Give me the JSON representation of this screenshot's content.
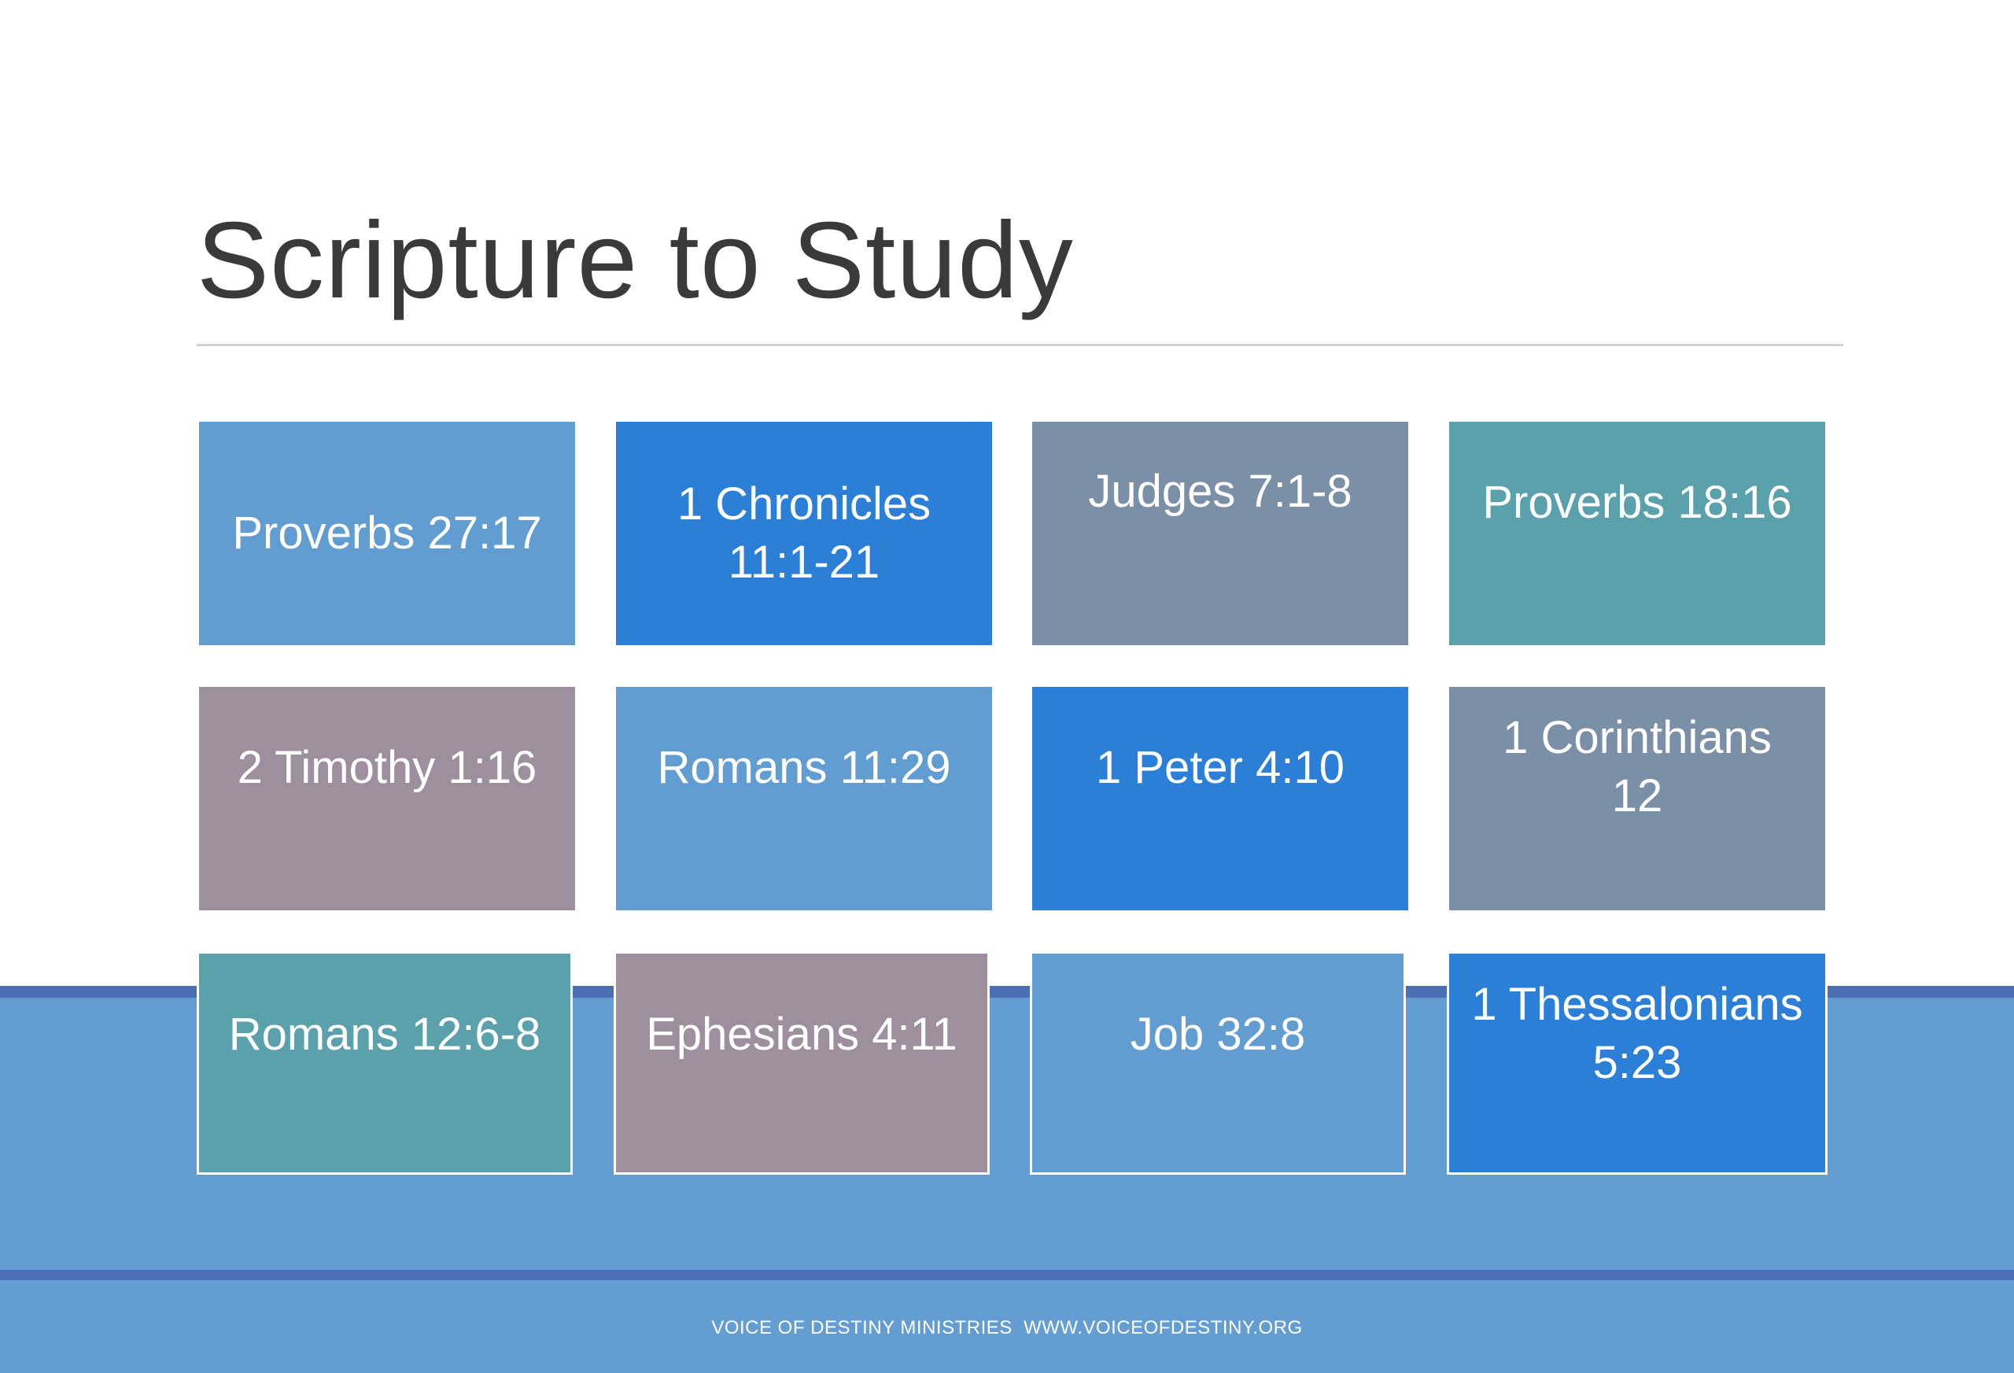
{
  "title": "Scripture to Study",
  "colors": {
    "light_blue": "#629dd1",
    "bright_blue": "#2c7fd6",
    "slate": "#7b8fa7",
    "teal": "#5aa1ab",
    "mauve": "#9e8f9e",
    "band": "#639dd1",
    "band_line": "#4b6fb5"
  },
  "tiles": [
    {
      "label": "Proverbs 27:17",
      "color": "light_blue"
    },
    {
      "label": "1 Chronicles 11:1-21",
      "color": "bright_blue"
    },
    {
      "label": "Judges 7:1-8",
      "color": "slate"
    },
    {
      "label": "Proverbs 18:16",
      "color": "teal"
    },
    {
      "label": "2 Timothy 1:16",
      "color": "mauve"
    },
    {
      "label": "Romans 11:29",
      "color": "light_blue"
    },
    {
      "label": "1 Peter 4:10",
      "color": "bright_blue"
    },
    {
      "label": "1 Corinthians 12",
      "color": "slate"
    },
    {
      "label": "Romans 12:6-8",
      "color": "teal"
    },
    {
      "label": "Ephesians 4:11",
      "color": "mauve"
    },
    {
      "label": "Job 32:8",
      "color": "light_blue"
    },
    {
      "label": "1 Thessalonians 5:23",
      "color": "bright_blue"
    }
  ],
  "footer": "VOICE OF DESTINY MINISTRIES  WWW.VOICEOFDESTINY.ORG"
}
